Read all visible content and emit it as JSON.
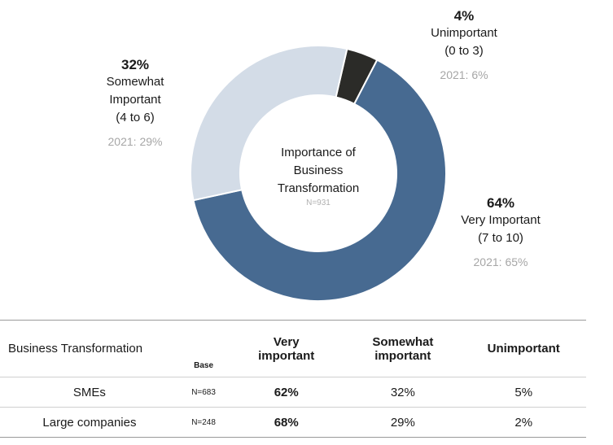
{
  "chart_data": {
    "type": "pie",
    "title": "Importance of Business Transformation",
    "subtitle": "N=931",
    "slices": [
      {
        "key": "very",
        "value": 64,
        "label": "64%",
        "category": [
          "Very Important",
          "(7 to 10)"
        ],
        "prev": "2021: 65%",
        "color": "#476a91"
      },
      {
        "key": "somewhat",
        "value": 32,
        "label": "32%",
        "category": [
          "Somewhat",
          "Important",
          "(4 to 6)"
        ],
        "prev": "2021: 29%",
        "color": "#d3dce7"
      },
      {
        "key": "unimportant",
        "value": 4,
        "label": "4%",
        "category": [
          "Unimportant",
          "(0 to 3)"
        ],
        "prev": "2021: 6%",
        "color": "#2b2b28"
      }
    ]
  },
  "center": {
    "title_lines": [
      "Importance of",
      "Business",
      "Transformation"
    ],
    "n": "N=931"
  },
  "table": {
    "header": {
      "first": "Business Transformation",
      "base": "Base",
      "very": "Very important",
      "somewhat": "Somewhat important",
      "unimportant": "Unimportant"
    },
    "rows": [
      {
        "label": "SMEs",
        "base": "N=683",
        "very": "62%",
        "somewhat": "32%",
        "unimportant": "5%"
      },
      {
        "label": "Large companies",
        "base": "N=248",
        "very": "68%",
        "somewhat": "29%",
        "unimportant": "2%"
      }
    ]
  }
}
